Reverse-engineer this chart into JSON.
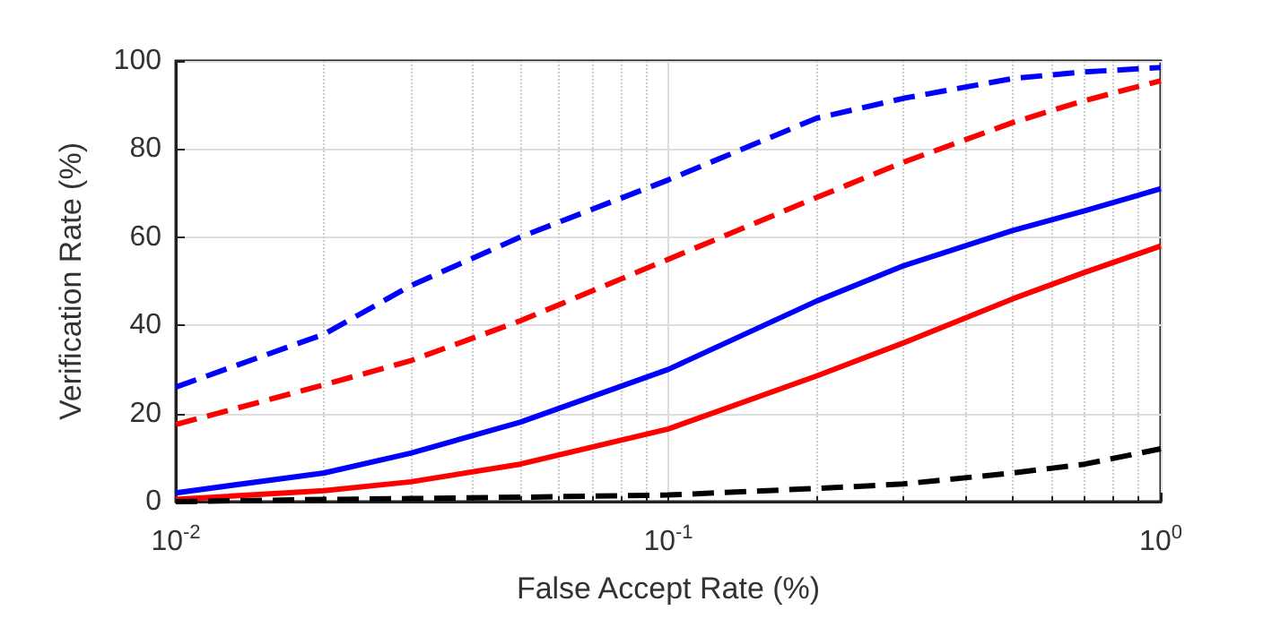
{
  "chart_data": {
    "type": "line",
    "xlabel": "False Accept Rate (%)",
    "ylabel": "Verification Rate (%)",
    "x": [
      0.01,
      0.02,
      0.03,
      0.05,
      0.1,
      0.2,
      0.3,
      0.5,
      0.7,
      1
    ],
    "series": [
      {
        "color": "#0000ff",
        "line_style": "dashed",
        "values": [
          26,
          38,
          49,
          60,
          73,
          87,
          91.5,
          96,
          97.5,
          98.5
        ]
      },
      {
        "color": "#ff0000",
        "line_style": "dashed",
        "values": [
          17.5,
          26.5,
          32,
          41,
          55,
          69,
          77,
          86,
          91,
          95.5
        ]
      },
      {
        "color": "#0000ff",
        "line_style": "solid",
        "values": [
          2,
          6.5,
          11,
          18,
          30,
          45.5,
          53.5,
          61.5,
          66,
          71
        ]
      },
      {
        "color": "#ff0000",
        "line_style": "solid",
        "values": [
          0.5,
          2.5,
          4.5,
          8.5,
          16.5,
          28.5,
          36,
          46,
          52,
          58
        ]
      },
      {
        "color": "#000000",
        "line_style": "dashed",
        "values": [
          0,
          0.5,
          0.7,
          1,
          1.5,
          3,
          4,
          6.5,
          8.5,
          12
        ]
      }
    ],
    "log": "x",
    "xlim": [
      0.01,
      1
    ],
    "xticks": [
      {
        "value": 0.01,
        "label": "10$^{-2}$"
      },
      {
        "value": 0.1,
        "label": "10$^{-1}$"
      },
      {
        "value": 1,
        "label": "10$^{0}$"
      }
    ],
    "ylim": [
      0,
      100
    ],
    "yticks": [
      0,
      20,
      40,
      60,
      80,
      100
    ],
    "grid": true,
    "marker": "none"
  }
}
